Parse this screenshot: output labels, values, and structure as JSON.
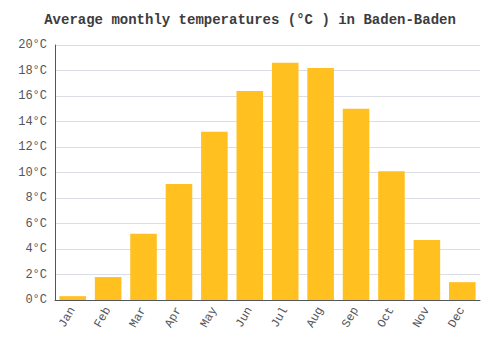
{
  "chart_data": {
    "type": "bar",
    "title": "Average monthly temperatures (°C ) in Baden-Baden",
    "categories": [
      "Jan",
      "Feb",
      "Mar",
      "Apr",
      "May",
      "Jun",
      "Jul",
      "Aug",
      "Sep",
      "Oct",
      "Nov",
      "Dec"
    ],
    "values": [
      0.3,
      1.8,
      5.2,
      9.1,
      13.2,
      16.4,
      18.6,
      18.2,
      15.0,
      10.1,
      4.7,
      1.4
    ],
    "color": "#FFC020",
    "ylim": [
      0,
      20
    ],
    "yticks": [
      {
        "value": 0,
        "label": "0°C"
      },
      {
        "value": 2,
        "label": "2°C"
      },
      {
        "value": 4,
        "label": "4°C"
      },
      {
        "value": 6,
        "label": "6°C"
      },
      {
        "value": 8,
        "label": "8°C"
      },
      {
        "value": 10,
        "label": "10°C"
      },
      {
        "value": 12,
        "label": "12°C"
      },
      {
        "value": 14,
        "label": "14°C"
      },
      {
        "value": 16,
        "label": "16°C"
      },
      {
        "value": 18,
        "label": "18°C"
      },
      {
        "value": 20,
        "label": "20°C"
      }
    ],
    "grid": true
  }
}
